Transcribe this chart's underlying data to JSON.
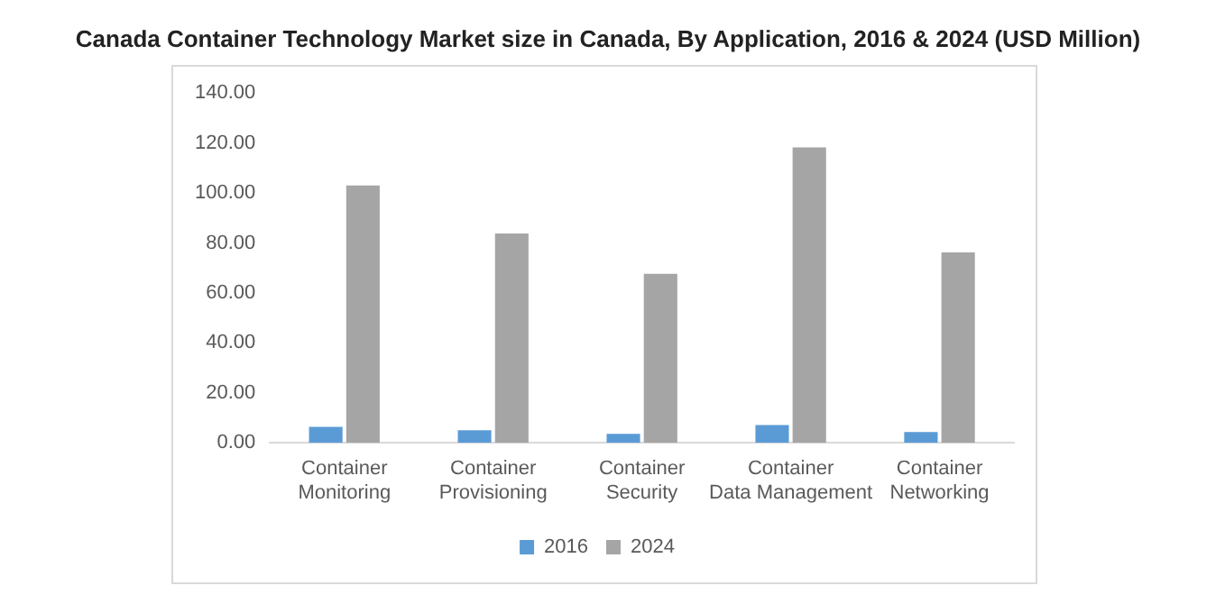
{
  "chart_data": {
    "type": "bar",
    "title": "Canada Container Technology Market size in Canada, By Application, 2016 & 2024 (USD Million)",
    "categories": [
      "Container Monitoring",
      "Container Provisioning",
      "Container Security",
      "Container Data Management",
      "Container Networking"
    ],
    "series": [
      {
        "name": "2016",
        "color": "#5b9bd5",
        "values": [
          6.4,
          5.0,
          3.6,
          7.1,
          4.3
        ]
      },
      {
        "name": "2024",
        "color": "#a5a5a5",
        "values": [
          103.0,
          83.8,
          67.6,
          118.2,
          76.2
        ]
      }
    ],
    "ylim": [
      0,
      140
    ],
    "yticks": [
      {
        "value": 0,
        "label": "0.00"
      },
      {
        "value": 20,
        "label": "20.00"
      },
      {
        "value": 40,
        "label": "40.00"
      },
      {
        "value": 60,
        "label": "60.00"
      },
      {
        "value": 80,
        "label": "80.00"
      },
      {
        "value": 100,
        "label": "100.00"
      },
      {
        "value": 120,
        "label": "120.00"
      },
      {
        "value": 140,
        "label": "140.00"
      }
    ],
    "grid": false,
    "legend": "bottom"
  }
}
